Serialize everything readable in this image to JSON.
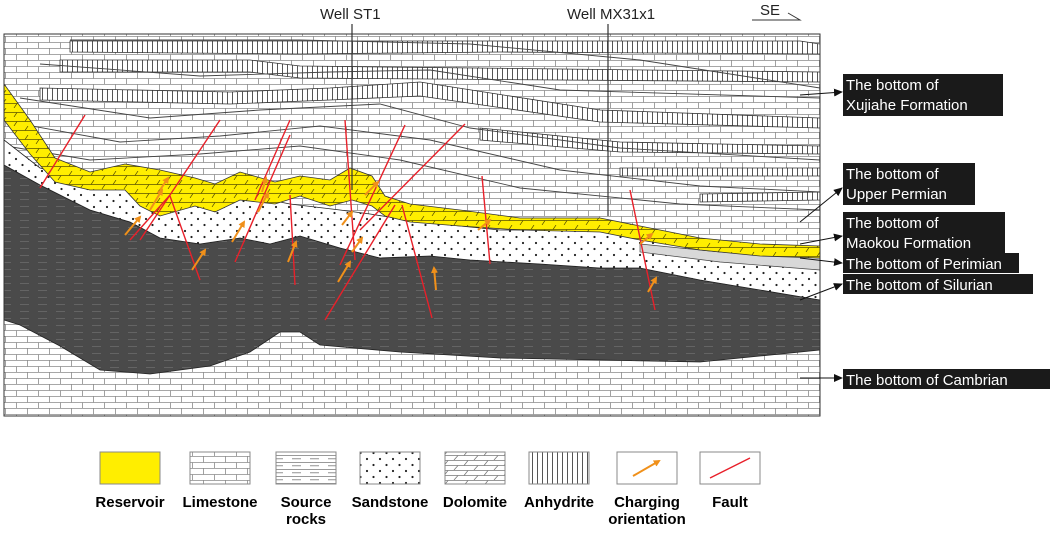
{
  "wells": [
    {
      "label": "Well ST1"
    },
    {
      "label": "Well MX31x1"
    }
  ],
  "direction_label": "SE",
  "formation_labels": [
    {
      "lines": [
        "The bottom of",
        "Xujiahe Formation"
      ]
    },
    {
      "lines": [
        "The bottom of",
        "Upper Permian"
      ]
    },
    {
      "lines": [
        "The bottom of",
        "Maokou Formation"
      ]
    },
    {
      "lines": [
        "The bottom of Perimian"
      ]
    },
    {
      "lines": [
        "The bottom of Silurian"
      ]
    },
    {
      "lines": [
        "The bottom of Cambrian"
      ]
    }
  ],
  "legend": [
    {
      "key": "reservoir",
      "lines": [
        "Reservoir"
      ]
    },
    {
      "key": "limestone",
      "lines": [
        "Limestone"
      ]
    },
    {
      "key": "source",
      "lines": [
        "Source",
        "rocks"
      ]
    },
    {
      "key": "sandstone",
      "lines": [
        "Sandstone"
      ]
    },
    {
      "key": "dolomite",
      "lines": [
        "Dolomite"
      ]
    },
    {
      "key": "anhydrite",
      "lines": [
        "Anhydrite"
      ]
    },
    {
      "key": "charging",
      "lines": [
        "Charging",
        "orientation"
      ]
    },
    {
      "key": "fault",
      "lines": [
        "Fault"
      ]
    }
  ],
  "colors": {
    "reservoir": "#ffee00",
    "source_rock": "#4a4a4a",
    "fault": "#e8202a",
    "charging_arrow": "#f0901a",
    "label_bg": "#1a1a1a"
  }
}
